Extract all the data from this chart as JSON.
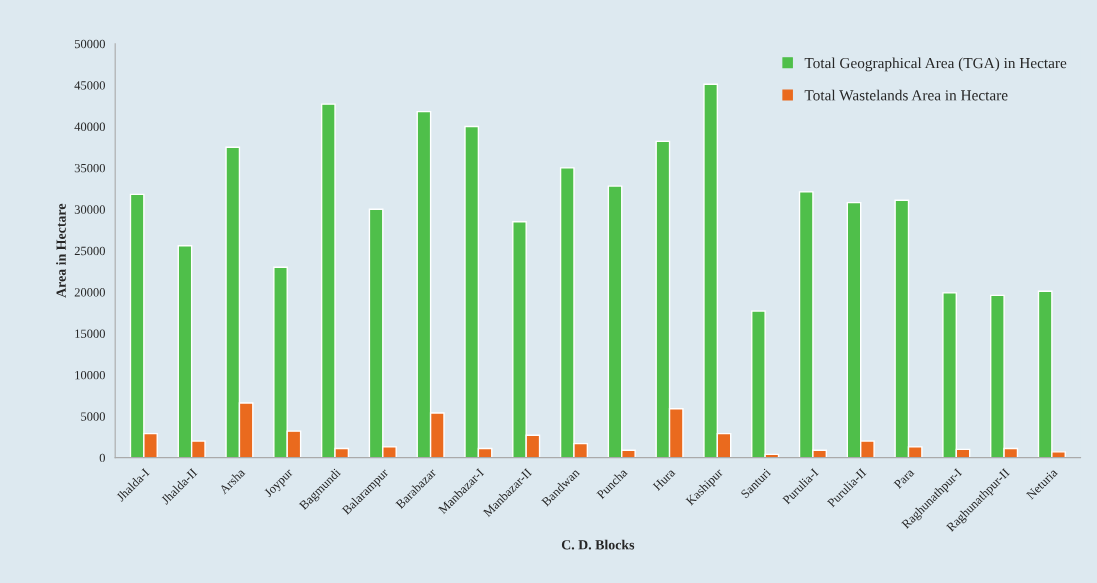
{
  "chart_data": {
    "type": "bar",
    "xlabel": "C. D. Blocks",
    "ylabel": "Area in Hectare",
    "categories": [
      "Jhalda-I",
      "Jhalda-II",
      "Arsha",
      "Joypur",
      "Bagmundi",
      "Balarampur",
      "Barabazar",
      "Manbazar-I",
      "Manbazar-II",
      "Bandwan",
      "Puncha",
      "Hura",
      "Kashipur",
      "Santuri",
      "Purulia-I",
      "Purulia-II",
      "Para",
      "Raghunathpur-I",
      "Raghunathpur-II",
      "Neturia"
    ],
    "series": [
      {
        "name": "Total Geographical Area (TGA) in Hectare",
        "color": "#4fbf4a",
        "values": [
          31800,
          25600,
          37500,
          23000,
          42700,
          30000,
          41800,
          40000,
          28500,
          35000,
          32800,
          38200,
          45100,
          17700,
          32100,
          30800,
          31100,
          19900,
          19600,
          20100
        ]
      },
      {
        "name": "Total Wastelands Area in Hectare",
        "color": "#ea6a1e",
        "values": [
          2900,
          2000,
          6600,
          3200,
          1100,
          1300,
          5400,
          1100,
          2700,
          1700,
          900,
          5900,
          2900,
          400,
          900,
          2000,
          1300,
          1000,
          1100,
          700
        ]
      }
    ],
    "ylim": [
      0,
      50000
    ],
    "yticks": [
      0,
      5000,
      10000,
      15000,
      20000,
      25000,
      30000,
      35000,
      40000,
      45000,
      50000
    ],
    "grid": false,
    "legend": "top right"
  }
}
